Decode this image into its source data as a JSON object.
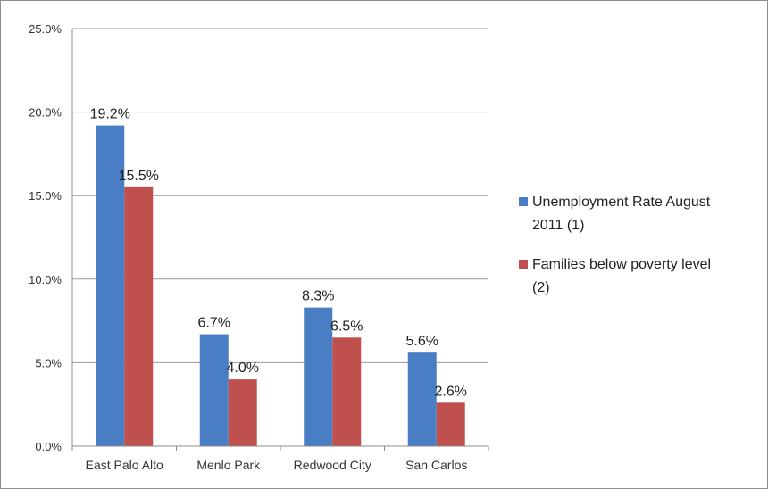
{
  "chart_data": {
    "type": "bar",
    "title": "",
    "xlabel": "",
    "ylabel": "",
    "categories": [
      "East Palo Alto",
      "Menlo Park",
      "Redwood City",
      "San Carlos"
    ],
    "series": [
      {
        "name": "Unemployment Rate August 2011 (1)",
        "name_lines": [
          "Unemployment Rate August",
          "2011 (1)"
        ],
        "values": [
          19.2,
          6.7,
          8.3,
          5.6
        ],
        "labels": [
          "19.2%",
          "6.7%",
          "8.3%",
          "5.6%"
        ],
        "color": "#4a7ec4"
      },
      {
        "name": "Families below poverty level (2)",
        "name_lines": [
          "Families below poverty level",
          "(2)"
        ],
        "values": [
          15.5,
          4.0,
          6.5,
          2.6
        ],
        "labels": [
          "15.5%",
          "4.0%",
          "6.5%",
          "2.6%"
        ],
        "color": "#c0504d"
      }
    ],
    "ylim": [
      0,
      25
    ],
    "yticks": [
      0,
      5,
      10,
      15,
      20,
      25
    ],
    "ytick_labels": [
      "0.0%",
      "5.0%",
      "10.0%",
      "15.0%",
      "20.0%",
      "25.0%"
    ],
    "grid": true,
    "legend_position": "right"
  }
}
